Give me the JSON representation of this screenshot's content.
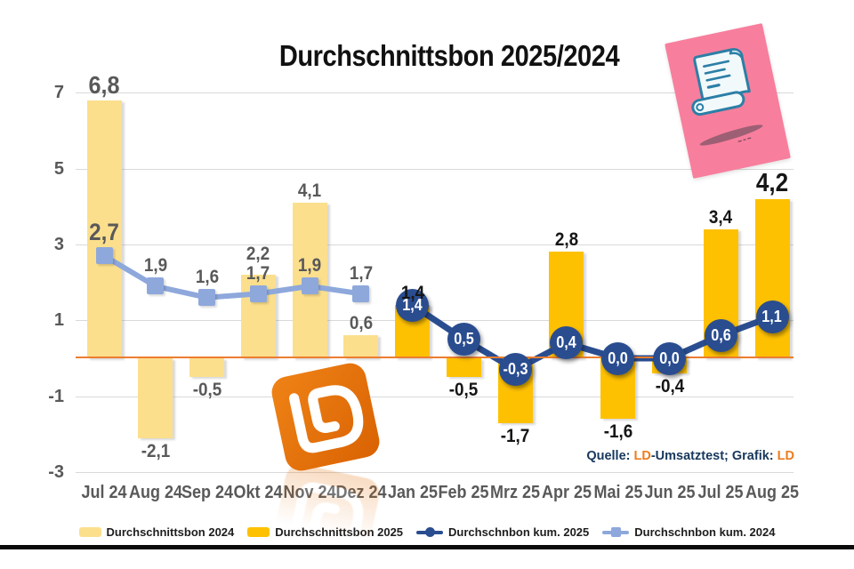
{
  "title": "Durchschnittsbon 2025/2024",
  "source": {
    "quelle_label": "Quelle: ",
    "brand_1": "LD",
    "middle_label": "-Umsatztest; Grafik: ",
    "brand_2": "LD"
  },
  "icons": {
    "sticker": "scroll-icon",
    "logo": "ld-logo",
    "logo_text": "LD"
  },
  "colors": {
    "bar_2024": "#FBDF8D",
    "bar_2025": "#FEC102",
    "line_kum_2025": "#2A4D90",
    "line_kum_2024": "#8EA8DC",
    "zero_line": "#ED7D31",
    "grid": "#D9D9D9",
    "tick_text": "#595959",
    "label_dark": "#161616",
    "source_navy": "#17375D",
    "brand_orange": "#ED7D1F",
    "sticker_pink": "#F87E9D",
    "logo_orange": "#E4700B"
  },
  "legend": {
    "items": [
      {
        "label": "Durchschnittsbon 2024",
        "marker": "swatch",
        "color": "#FBDF8D"
      },
      {
        "label": "Durchschnittsbon 2025",
        "marker": "swatch",
        "color": "#FEC102"
      },
      {
        "label": "Durchschnbon kum. 2025",
        "marker": "line-circle",
        "color": "#2A4D90"
      },
      {
        "label": "Durchschnbon kum. 2024",
        "marker": "line-square",
        "color": "#8EA8DC"
      }
    ]
  },
  "chart_data": {
    "type": "bar-line-combo",
    "title": "Durchschnittsbon 2025/2024",
    "categories": [
      "Jul 24",
      "Aug 24",
      "Sep 24",
      "Okt 24",
      "Nov 24",
      "Dez 24",
      "Jan 25",
      "Feb 25",
      "Mrz 25",
      "Apr 25",
      "Mai 25",
      "Jun 25",
      "Jul 25",
      "Aug 25"
    ],
    "y_ticks": [
      7,
      5,
      3,
      1,
      -1,
      -3
    ],
    "ylim": [
      -3.5,
      7.5
    ],
    "grid": true,
    "legend_position": "bottom",
    "decimal_separator": ",",
    "series": [
      {
        "name": "Durchschnittsbon 2024",
        "type": "bar",
        "color": "#FBDF8D",
        "label_color": "#595959",
        "values": [
          6.8,
          -2.1,
          -0.5,
          2.2,
          4.1,
          0.6,
          null,
          null,
          null,
          null,
          null,
          null,
          null,
          null
        ]
      },
      {
        "name": "Durchschnittsbon 2025",
        "type": "bar",
        "color": "#FEC102",
        "label_color": "#161616",
        "values": [
          null,
          null,
          null,
          null,
          null,
          null,
          1.4,
          -0.5,
          -1.7,
          2.8,
          -1.6,
          -0.4,
          3.4,
          4.2
        ]
      },
      {
        "name": "Durchschnbon kum. 2025",
        "type": "line",
        "marker": "circle",
        "color": "#2A4D90",
        "label_color": "#ffffff",
        "values": [
          null,
          null,
          null,
          null,
          null,
          null,
          1.4,
          0.5,
          -0.3,
          0.4,
          0.0,
          0.0,
          0.6,
          1.1
        ]
      },
      {
        "name": "Durchschnbon kum. 2024",
        "type": "line",
        "marker": "square",
        "color": "#8EA8DC",
        "label_color": "#595959",
        "values": [
          2.7,
          1.9,
          1.6,
          1.7,
          1.9,
          1.7,
          null,
          null,
          null,
          null,
          null,
          null,
          null,
          null
        ]
      }
    ]
  }
}
